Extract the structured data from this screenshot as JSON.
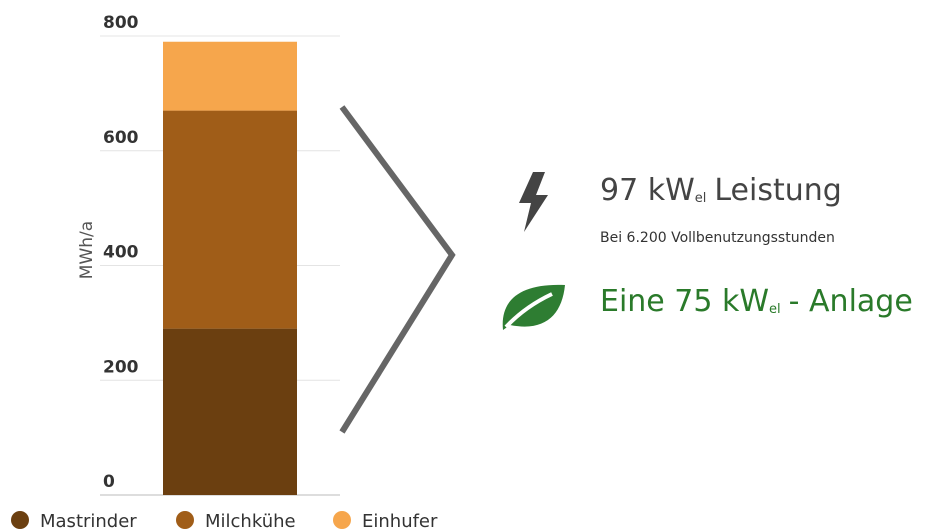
{
  "chart_data": {
    "type": "bar",
    "stacked": true,
    "y_label": "MWh/a",
    "categories": [
      null
    ],
    "series": [
      {
        "name": "Mastrinder",
        "color": "#6b3f10",
        "values": [
          290
        ]
      },
      {
        "name": "Milchkühe",
        "color": "#a05d18",
        "values": [
          380
        ]
      },
      {
        "name": "Einhufer",
        "color": "#f6a64c",
        "values": [
          120
        ]
      }
    ],
    "ylim": [
      0,
      800
    ],
    "yticks": [
      0,
      200,
      400,
      600,
      800
    ],
    "grid": true,
    "legend": "bottom"
  },
  "info": {
    "power": {
      "parts": [
        "97 kW",
        "el",
        "Leistung"
      ],
      "note": "Bei 6.200 Vollbenutzungsstunden"
    },
    "plant": {
      "parts": [
        "Eine 75 kW",
        "el",
        "- Anlage"
      ]
    }
  }
}
